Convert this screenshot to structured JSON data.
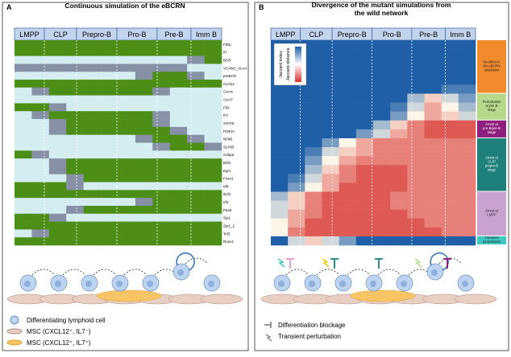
{
  "panel_a": {
    "letter": "A",
    "title": "Continuous simulation of the eBCRN",
    "stages": [
      "LMPP",
      "CLP",
      "Prepro-B",
      "Pro-B",
      "Pre-B",
      "Imm B"
    ],
    "genes": [
      "Flt3L",
      "Il7",
      "BCR",
      "VCAM1_VLA4",
      "preBCR",
      "Cxcl12",
      "Cxcr4",
      "Cxcr7",
      "Flt3",
      "Il7r",
      "STAT5",
      "PI3KIA",
      "NFkB",
      "SLP65",
      "Cebpa",
      "Ebf1",
      "Egr1",
      "Foxo1",
      "Irf8",
      "Ikzf1",
      "Irf4",
      "Pax5",
      "Spi1",
      "Spi1_2",
      "Tcf3",
      "Runx1"
    ],
    "values": [
      [
        1,
        1,
        1,
        1,
        1,
        1,
        1,
        1,
        1,
        1,
        1,
        1
      ],
      [
        1,
        1,
        1,
        1,
        1,
        1,
        1,
        1,
        1,
        1,
        1,
        1
      ],
      [
        0,
        0,
        0,
        0,
        0,
        0,
        0,
        0,
        0,
        0,
        0.5,
        1
      ],
      [
        0.5,
        0.5,
        0.5,
        0.5,
        0.5,
        0.5,
        0.5,
        0.5,
        0.5,
        0.5,
        0,
        0
      ],
      [
        0,
        0,
        0,
        0,
        0,
        0,
        0,
        0.5,
        1,
        1,
        0.5,
        0
      ],
      [
        1,
        1,
        1,
        1,
        1,
        1,
        1,
        1,
        1,
        1,
        1,
        1
      ],
      [
        0,
        0.5,
        1,
        1,
        1,
        1,
        1,
        1,
        0.5,
        0,
        0,
        0
      ],
      [
        0,
        0,
        0,
        0,
        0,
        0,
        0,
        0,
        0,
        0,
        0,
        0
      ],
      [
        1,
        1,
        0.5,
        0,
        0,
        0,
        0,
        0,
        0,
        0,
        0,
        0
      ],
      [
        0,
        0.5,
        1,
        1,
        1,
        1,
        1,
        1,
        0.5,
        0,
        0,
        0
      ],
      [
        0,
        0,
        0.5,
        1,
        1,
        1,
        1,
        1,
        0.5,
        0,
        0,
        0
      ],
      [
        0,
        0,
        0.5,
        1,
        1,
        1,
        1,
        1,
        1,
        0.5,
        0,
        0
      ],
      [
        0,
        0,
        0,
        0,
        0,
        0,
        0,
        0.5,
        1,
        1,
        0.5,
        0
      ],
      [
        0,
        0,
        0,
        0,
        0,
        0,
        0,
        0,
        0.5,
        1,
        1,
        0.5
      ],
      [
        1,
        0.5,
        0,
        0,
        0,
        0,
        0,
        0,
        0,
        0,
        0,
        0
      ],
      [
        0,
        0,
        0.5,
        1,
        1,
        1,
        1,
        1,
        1,
        1,
        1,
        1
      ],
      [
        0,
        0,
        0.5,
        1,
        1,
        1,
        1,
        1,
        1,
        1,
        1,
        1
      ],
      [
        0,
        0,
        0,
        0.5,
        1,
        1,
        1,
        1,
        1,
        1,
        1,
        1
      ],
      [
        1,
        1,
        1,
        0.5,
        0,
        0,
        0,
        0,
        0,
        0,
        0,
        0
      ],
      [
        1,
        1,
        1,
        1,
        1,
        1,
        1,
        1,
        1,
        1,
        1,
        1
      ],
      [
        0,
        0,
        0,
        0,
        0,
        0,
        0,
        0.5,
        1,
        1,
        1,
        1
      ],
      [
        0,
        0,
        0,
        0.5,
        1,
        1,
        1,
        1,
        1,
        1,
        1,
        1
      ],
      [
        1,
        1,
        0.5,
        0,
        0,
        0,
        0,
        0,
        0,
        0,
        0,
        0
      ],
      [
        1,
        1,
        1,
        1,
        1,
        1,
        1,
        1,
        1,
        1,
        1,
        1
      ],
      [
        0,
        0.5,
        1,
        1,
        1,
        1,
        1,
        1,
        1,
        1,
        1,
        1
      ],
      [
        1,
        1,
        1,
        1,
        1,
        1,
        1,
        1,
        1,
        1,
        1,
        1
      ]
    ],
    "legend": [
      "Differentiating lymphoid cell",
      "MSC (CXCL12⁺, IL7⁻)",
      "MSC (CXCL12⁺, IL7⁺)"
    ]
  },
  "panel_b": {
    "letter": "B",
    "title": [
      "Divergence of the mutant simulations from",
      "the wild network"
    ],
    "stages": [
      "LMPP",
      "CLP",
      "Prepro-B",
      "Pro-B",
      "Pre-B",
      "Imm B"
    ],
    "colorbar": [
      "Jaccard index",
      "Jaccard distance"
    ],
    "values": [
      [
        0,
        0,
        0,
        0,
        0,
        0,
        0,
        0,
        0,
        0,
        0,
        0
      ],
      [
        0,
        0,
        0,
        0,
        0,
        0,
        0,
        0,
        0,
        0,
        0,
        0
      ],
      [
        0,
        0,
        0,
        0,
        0,
        0,
        0,
        0,
        0,
        0,
        0,
        0
      ],
      [
        0,
        0,
        0,
        0,
        0,
        0,
        0,
        0,
        0,
        0,
        0,
        0
      ],
      [
        0,
        0,
        0,
        0,
        0,
        0,
        0,
        0,
        0,
        0,
        0,
        0
      ],
      [
        0,
        0,
        0,
        0,
        0,
        0,
        0,
        0,
        0,
        0,
        0.1,
        0.1
      ],
      [
        0,
        0,
        0,
        0,
        0,
        0,
        0,
        0,
        0.3,
        0.6,
        0.4,
        0.2
      ],
      [
        0,
        0,
        0,
        0,
        0,
        0,
        0,
        0.1,
        0.4,
        0.7,
        0.5,
        0.3
      ],
      [
        0,
        0,
        0,
        0,
        0,
        0,
        0,
        0.2,
        0.5,
        0.7,
        0.6,
        0.4
      ],
      [
        0,
        0,
        0,
        0,
        0,
        0,
        0.3,
        0.6,
        0.8,
        0.9,
        0.9,
        0.9
      ],
      [
        0,
        0,
        0,
        0,
        0,
        0.2,
        0.4,
        0.7,
        0.8,
        0.9,
        0.9,
        0.9
      ],
      [
        0,
        0,
        0,
        0.2,
        0.5,
        0.7,
        0.8,
        0.8,
        0.8,
        0.8,
        0.8,
        0.8
      ],
      [
        0,
        0,
        0.1,
        0.4,
        0.6,
        0.7,
        0.8,
        0.8,
        0.8,
        0.8,
        0.8,
        0.8
      ],
      [
        0,
        0,
        0.2,
        0.5,
        0.7,
        0.8,
        0.8,
        0.8,
        0.8,
        0.8,
        0.8,
        0.8
      ],
      [
        0,
        0,
        0.3,
        0.6,
        0.8,
        0.9,
        0.9,
        0.9,
        0.8,
        0.8,
        0.8,
        0.8
      ],
      [
        0,
        0.1,
        0.4,
        0.7,
        0.8,
        0.9,
        0.9,
        0.9,
        0.8,
        0.8,
        0.8,
        0.8
      ],
      [
        0,
        0.2,
        0.5,
        0.7,
        0.9,
        0.9,
        0.9,
        0.9,
        0.8,
        0.8,
        0.8,
        0.8
      ],
      [
        0.3,
        0.6,
        0.8,
        0.9,
        0.9,
        0.9,
        0.9,
        0.8,
        0.8,
        0.8,
        0.8,
        0.8
      ],
      [
        0.4,
        0.6,
        0.8,
        0.9,
        0.9,
        0.9,
        0.9,
        0.8,
        0.8,
        0.8,
        0.8,
        0.8
      ],
      [
        0.4,
        0.7,
        0.8,
        0.9,
        0.9,
        0.9,
        0.9,
        0.9,
        0.8,
        0.8,
        0.8,
        0.8
      ],
      [
        0.5,
        0.7,
        0.9,
        0.9,
        0.9,
        0.9,
        0.9,
        0.9,
        0.9,
        0.8,
        0.8,
        0.8
      ],
      [
        0.5,
        0.8,
        0.9,
        0.9,
        0.9,
        0.9,
        0.9,
        0.9,
        0.9,
        0.9,
        0.8,
        0.8
      ],
      [
        0,
        0.4,
        0.6,
        0.4,
        0.2,
        0,
        0,
        0,
        0,
        0,
        0,
        0
      ]
    ],
    "groups": [
      {
        "label": "No effect in the eBCRN simulation",
        "color": "#f28a2e",
        "rows": 6
      },
      {
        "label": "Perturbation at pre-B stage",
        "color": "#b5d88a",
        "rows": 3
      },
      {
        "label": "Arrest at pro-B/pre-B stage",
        "color": "#8e1f7d",
        "rows": 2
      },
      {
        "label": "Arrest at CLP/ prepro-B stage",
        "color": "#1f7f7a",
        "rows": 6
      },
      {
        "label": "Arrest at LMPP",
        "color": "#c9a3cf",
        "rows": 5
      },
      {
        "label": "Transient perturbation",
        "color": "#3ec6c0",
        "rows": 1
      }
    ],
    "legend": [
      "Differentiation blockage",
      "Transient perturbation"
    ]
  }
}
